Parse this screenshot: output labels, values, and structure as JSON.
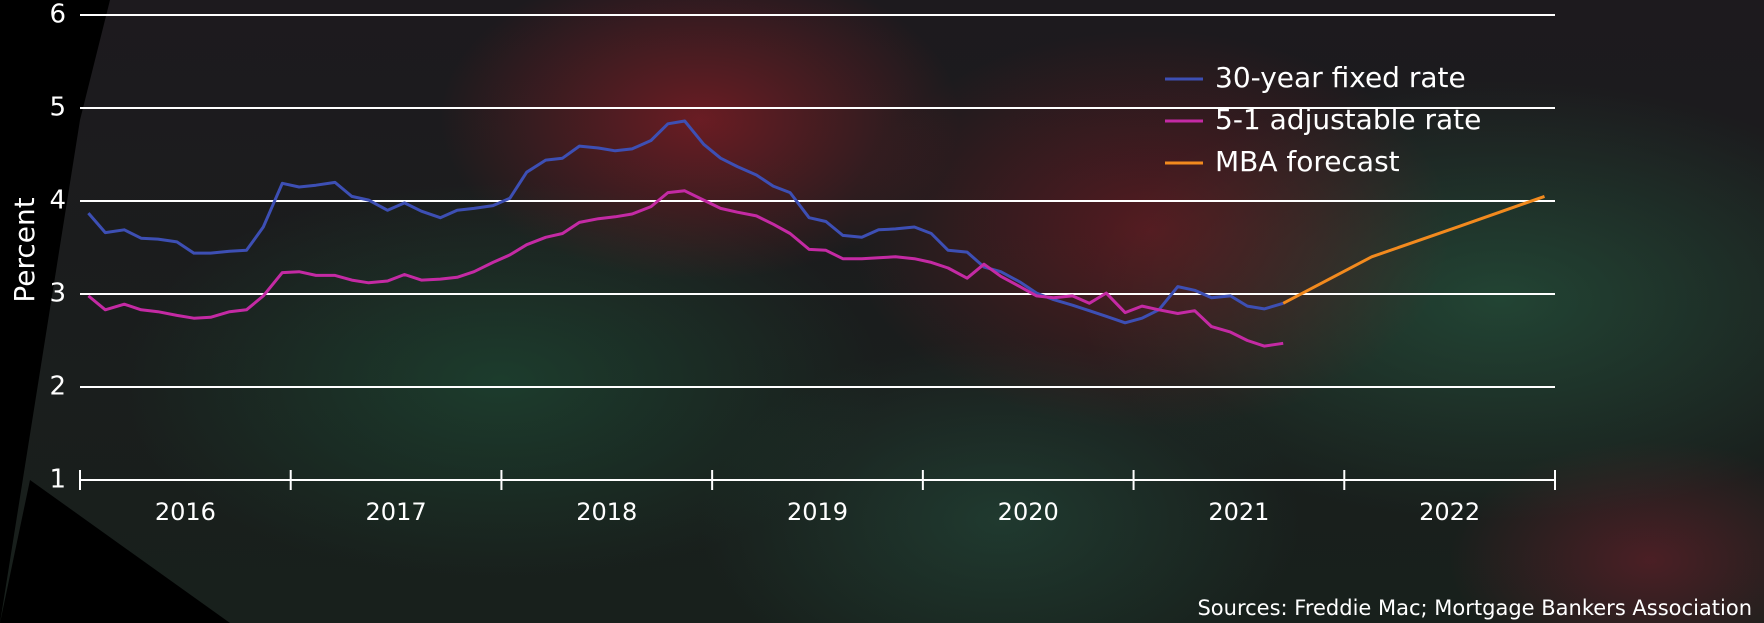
{
  "chart_data": {
    "type": "line",
    "y_label": "Percent",
    "source": "Sources: Freddie Mac; Mortgage Bankers Association",
    "x_labels": [
      "2016",
      "2017",
      "2018",
      "2019",
      "2020",
      "2021",
      "2022"
    ],
    "xlim": [
      2016,
      2023
    ],
    "xticks": [
      2016,
      2017,
      2018,
      2019,
      2020,
      2021,
      2022,
      2023
    ],
    "ylim": [
      1,
      6
    ],
    "yticks": [
      1,
      2,
      3,
      4,
      5,
      6
    ],
    "grid": true,
    "legend": "upper right",
    "x": [
      2016.04,
      2016.12,
      2016.21,
      2016.29,
      2016.37,
      2016.46,
      2016.54,
      2016.62,
      2016.71,
      2016.79,
      2016.87,
      2016.96,
      2017.04,
      2017.12,
      2017.21,
      2017.29,
      2017.37,
      2017.46,
      2017.54,
      2017.62,
      2017.71,
      2017.79,
      2017.87,
      2017.96,
      2018.04,
      2018.12,
      2018.21,
      2018.29,
      2018.37,
      2018.46,
      2018.54,
      2018.62,
      2018.71,
      2018.79,
      2018.87,
      2018.96,
      2019.04,
      2019.12,
      2019.21,
      2019.29,
      2019.37,
      2019.46,
      2019.54,
      2019.62,
      2019.71,
      2019.79,
      2019.87,
      2019.96,
      2020.04,
      2020.12,
      2020.21,
      2020.29,
      2020.37,
      2020.46,
      2020.54,
      2020.62,
      2020.71,
      2020.79,
      2020.87,
      2020.96,
      2021.04,
      2021.12,
      2021.21,
      2021.29,
      2021.37,
      2021.46,
      2021.54,
      2021.62,
      2021.71
    ],
    "series": [
      {
        "name": "30-year fixed rate",
        "color": "#3d4fb4",
        "values": [
          3.87,
          3.66,
          3.69,
          3.6,
          3.59,
          3.56,
          3.44,
          3.44,
          3.46,
          3.47,
          3.72,
          4.19,
          4.15,
          4.17,
          4.2,
          4.05,
          4.01,
          3.9,
          3.98,
          3.89,
          3.82,
          3.9,
          3.92,
          3.95,
          4.03,
          4.31,
          4.44,
          4.46,
          4.59,
          4.57,
          4.54,
          4.56,
          4.65,
          4.83,
          4.86,
          4.61,
          4.46,
          4.37,
          4.28,
          4.16,
          4.09,
          3.82,
          3.78,
          3.63,
          3.61,
          3.69,
          3.7,
          3.72,
          3.65,
          3.47,
          3.45,
          3.29,
          3.24,
          3.13,
          3.01,
          2.94,
          2.88,
          2.82,
          2.76,
          2.69,
          2.74,
          2.83,
          3.08,
          3.04,
          2.96,
          2.98,
          2.87,
          2.84,
          2.9
        ]
      },
      {
        "name": "5-1 adjustable rate",
        "color": "#c42aa4",
        "values": [
          2.98,
          2.83,
          2.89,
          2.83,
          2.81,
          2.77,
          2.74,
          2.75,
          2.81,
          2.83,
          2.98,
          3.23,
          3.24,
          3.2,
          3.2,
          3.15,
          3.12,
          3.14,
          3.21,
          3.15,
          3.16,
          3.18,
          3.24,
          3.34,
          3.42,
          3.53,
          3.61,
          3.65,
          3.77,
          3.81,
          3.83,
          3.86,
          3.94,
          4.09,
          4.11,
          4.01,
          3.92,
          3.88,
          3.84,
          3.75,
          3.65,
          3.48,
          3.47,
          3.38,
          3.38,
          3.39,
          3.4,
          3.38,
          3.34,
          3.28,
          3.17,
          3.32,
          3.19,
          3.08,
          2.98,
          2.96,
          2.98,
          2.9,
          3.01,
          2.8,
          2.87,
          2.83,
          2.79,
          2.82,
          2.65,
          2.59,
          2.5,
          2.44,
          2.47
        ]
      },
      {
        "name": "MBA forecast",
        "color": "#f28a1e",
        "x": [
          2021.71,
          2022.13,
          2022.55,
          2022.95
        ],
        "values": [
          2.9,
          3.4,
          3.73,
          4.05
        ]
      }
    ]
  }
}
